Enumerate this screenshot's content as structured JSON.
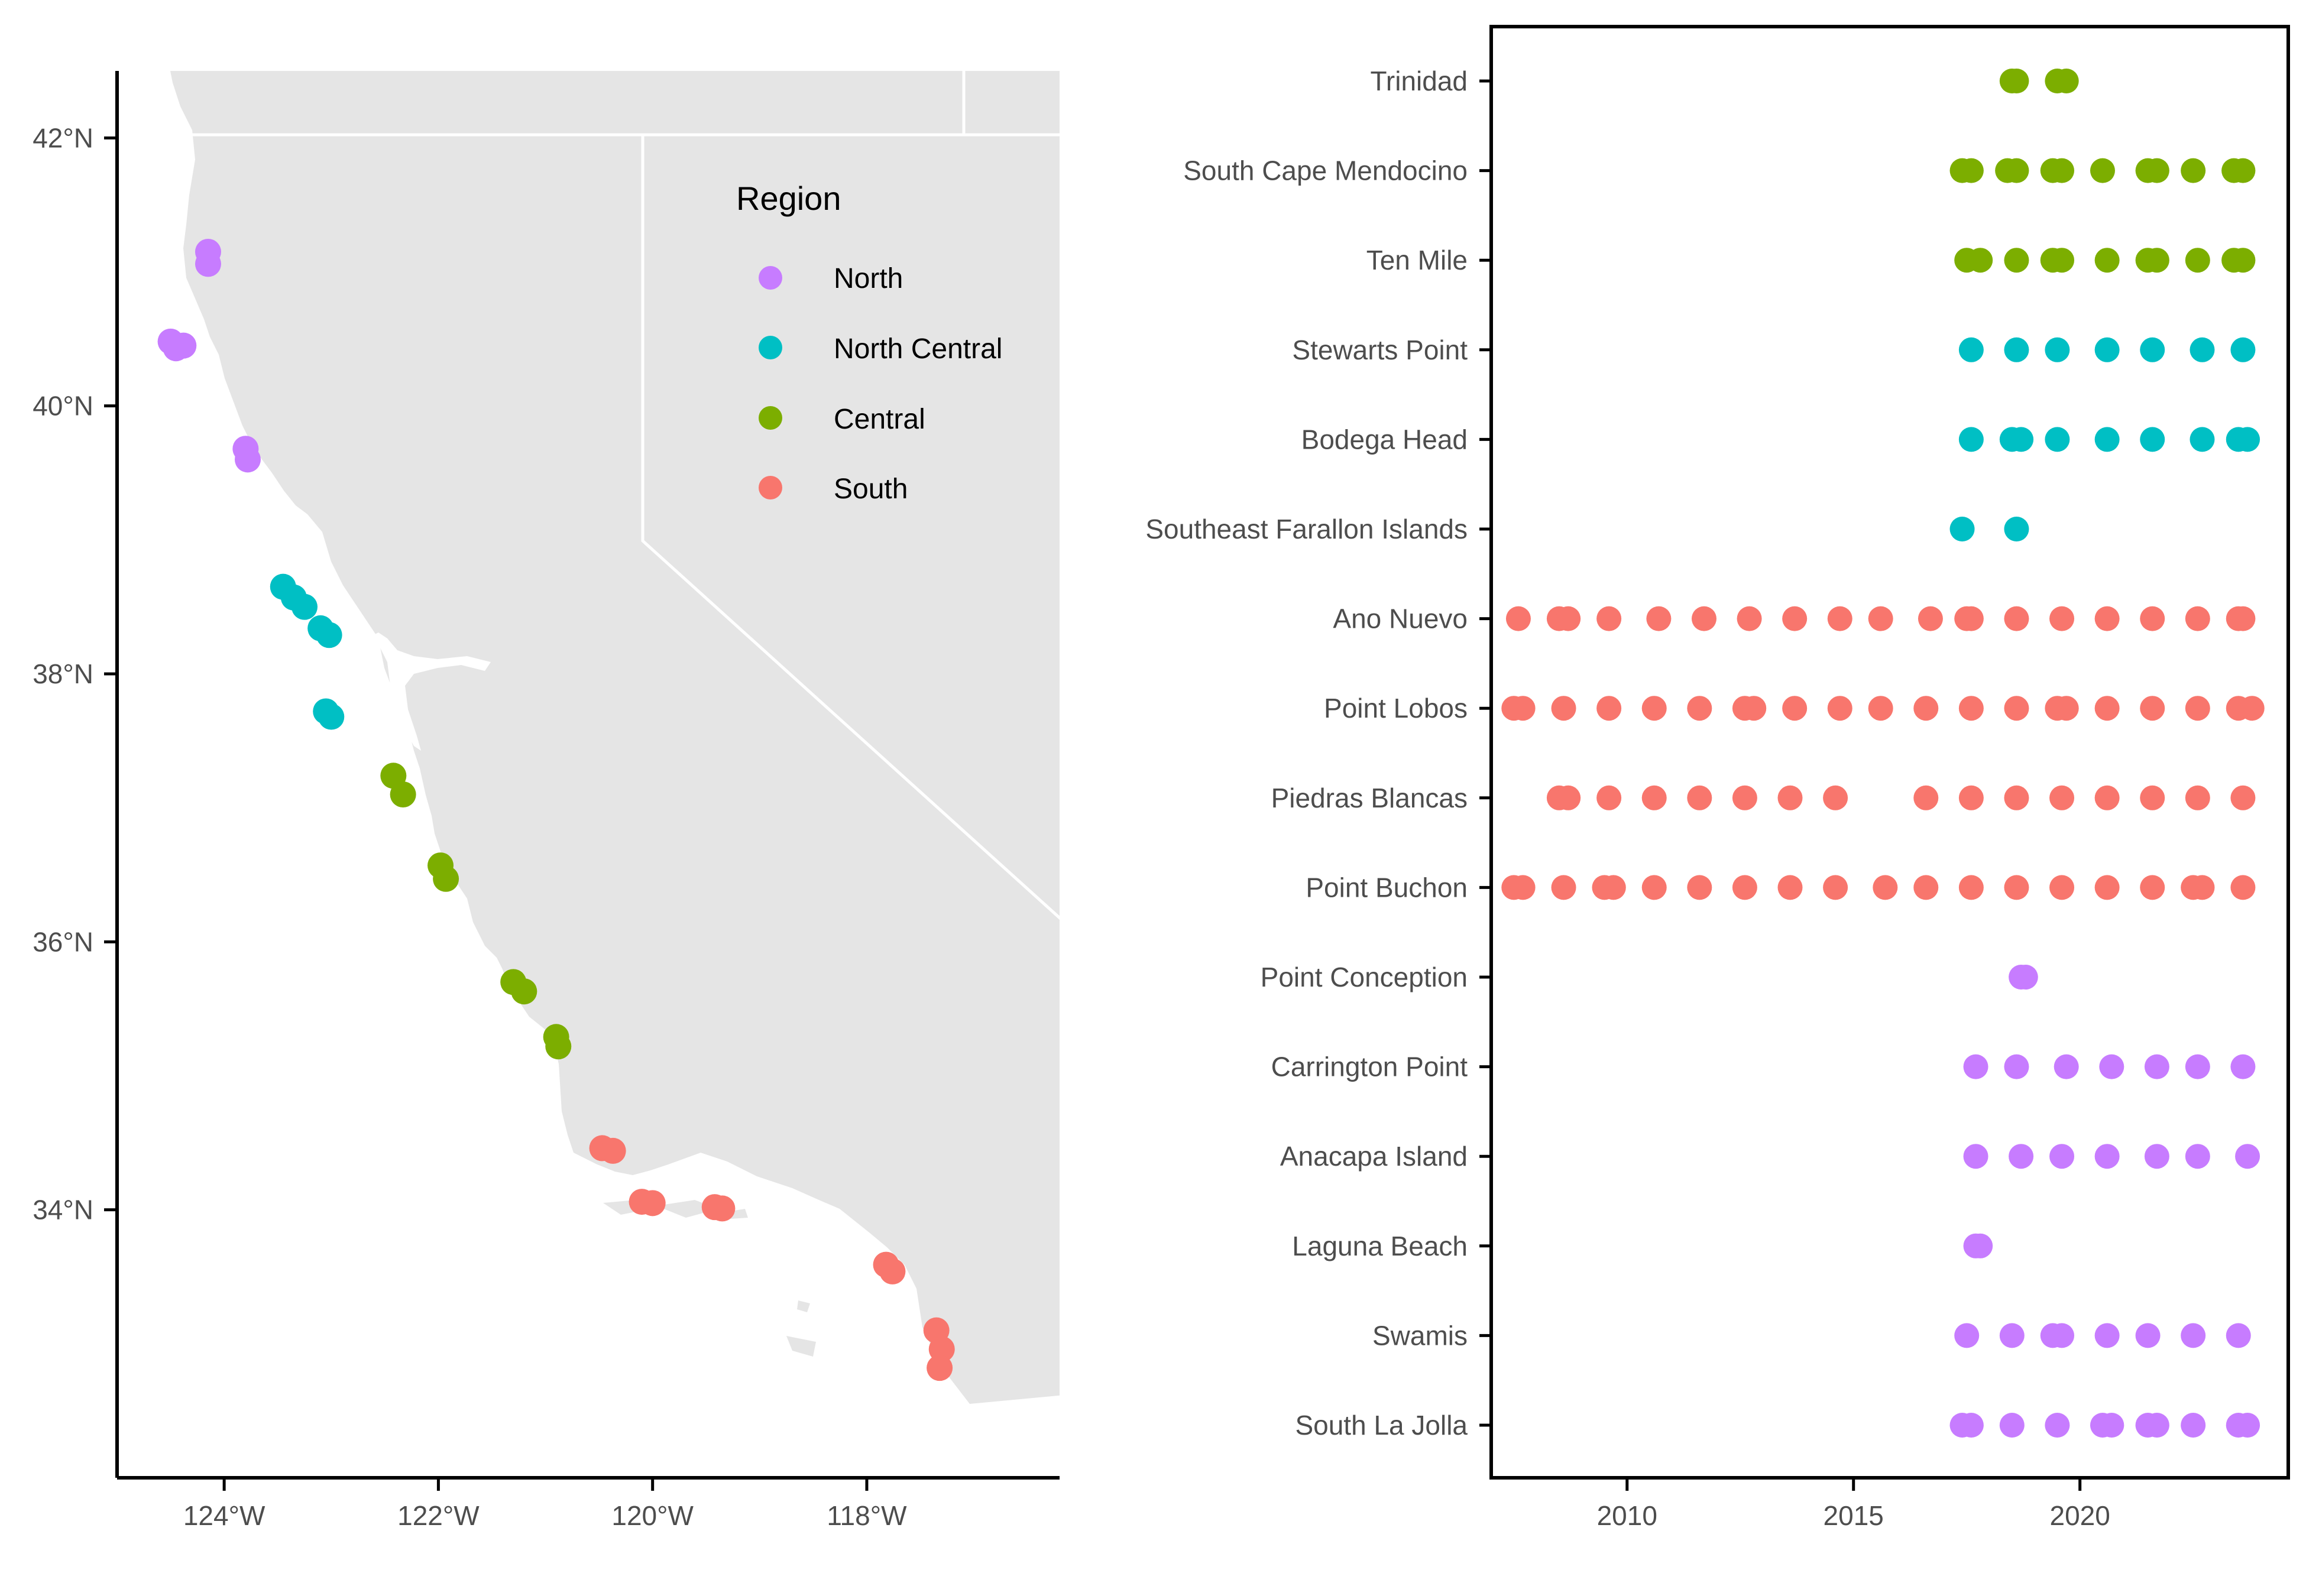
{
  "colors": {
    "North": "#c77cff",
    "North Central": "#00bfc4",
    "Central": "#7cae00",
    "South": "#f8766d",
    "land": "#e5e5e5",
    "ocean": "#ffffff",
    "axis": "#000000"
  },
  "legend": {
    "title": "Region",
    "items": [
      "North",
      "North Central",
      "Central",
      "South"
    ]
  },
  "chart_data": [
    {
      "type": "scatter",
      "name": "site map",
      "xlim": [
        -125.0,
        -116.2
      ],
      "ylim": [
        32.0,
        42.5
      ],
      "x_ticks": [
        -124,
        -122,
        -120,
        -118
      ],
      "x_tick_labels": [
        "124°W",
        "122°W",
        "120°W",
        "118°W"
      ],
      "y_ticks": [
        34,
        36,
        38,
        40,
        42
      ],
      "y_tick_labels": [
        "34°N",
        "36°N",
        "38°N",
        "40°N",
        "42°N"
      ],
      "grid": false,
      "legend_position": "top-right",
      "points": [
        {
          "lon": -124.15,
          "lat": 41.15,
          "region": "North"
        },
        {
          "lon": -124.15,
          "lat": 41.06,
          "region": "North"
        },
        {
          "lon": -124.5,
          "lat": 40.48,
          "region": "North"
        },
        {
          "lon": -124.38,
          "lat": 40.45,
          "region": "North"
        },
        {
          "lon": -124.45,
          "lat": 40.43,
          "region": "North"
        },
        {
          "lon": -123.8,
          "lat": 39.68,
          "region": "North"
        },
        {
          "lon": -123.78,
          "lat": 39.6,
          "region": "North"
        },
        {
          "lon": -123.45,
          "lat": 38.65,
          "region": "North Central"
        },
        {
          "lon": -123.35,
          "lat": 38.57,
          "region": "North Central"
        },
        {
          "lon": -123.25,
          "lat": 38.5,
          "region": "North Central"
        },
        {
          "lon": -123.1,
          "lat": 38.34,
          "region": "North Central"
        },
        {
          "lon": -123.02,
          "lat": 38.29,
          "region": "North Central"
        },
        {
          "lon": -123.05,
          "lat": 37.72,
          "region": "North Central"
        },
        {
          "lon": -123.0,
          "lat": 37.68,
          "region": "North Central"
        },
        {
          "lon": -122.42,
          "lat": 37.24,
          "region": "Central"
        },
        {
          "lon": -122.33,
          "lat": 37.1,
          "region": "Central"
        },
        {
          "lon": -121.98,
          "lat": 36.57,
          "region": "Central"
        },
        {
          "lon": -121.93,
          "lat": 36.47,
          "region": "Central"
        },
        {
          "lon": -121.3,
          "lat": 35.7,
          "region": "Central"
        },
        {
          "lon": -121.2,
          "lat": 35.63,
          "region": "Central"
        },
        {
          "lon": -120.9,
          "lat": 35.29,
          "region": "Central"
        },
        {
          "lon": -120.88,
          "lat": 35.22,
          "region": "Central"
        },
        {
          "lon": -120.47,
          "lat": 34.46,
          "region": "South"
        },
        {
          "lon": -120.37,
          "lat": 34.44,
          "region": "South"
        },
        {
          "lon": -120.1,
          "lat": 34.06,
          "region": "South"
        },
        {
          "lon": -120.0,
          "lat": 34.05,
          "region": "South"
        },
        {
          "lon": -119.42,
          "lat": 34.02,
          "region": "South"
        },
        {
          "lon": -119.35,
          "lat": 34.01,
          "region": "South"
        },
        {
          "lon": -117.82,
          "lat": 33.59,
          "region": "South"
        },
        {
          "lon": -117.76,
          "lat": 33.54,
          "region": "South"
        },
        {
          "lon": -117.35,
          "lat": 33.1,
          "region": "South"
        },
        {
          "lon": -117.3,
          "lat": 32.96,
          "region": "South"
        },
        {
          "lon": -117.32,
          "lat": 32.82,
          "region": "South"
        }
      ]
    },
    {
      "type": "scatter",
      "name": "sampling timeline",
      "xlim": [
        2007.0,
        2024.6
      ],
      "x_ticks": [
        2010,
        2015,
        2020
      ],
      "x_tick_labels": [
        "2010",
        "2015",
        "2020"
      ],
      "grid": false,
      "sites": [
        {
          "label": "Trinidad",
          "region": "Central",
          "years": [
            2018.5,
            2018.6,
            2019.5,
            2019.7
          ]
        },
        {
          "label": "South Cape Mendocino",
          "region": "Central",
          "years": [
            2017.4,
            2017.6,
            2018.4,
            2018.6,
            2019.4,
            2019.6,
            2020.5,
            2021.5,
            2021.7,
            2022.5,
            2023.4,
            2023.6
          ]
        },
        {
          "label": "Ten Mile",
          "region": "Central",
          "years": [
            2017.5,
            2017.8,
            2018.6,
            2019.4,
            2019.6,
            2020.6,
            2021.5,
            2021.7,
            2022.6,
            2023.4,
            2023.6
          ]
        },
        {
          "label": "Stewarts Point",
          "region": "North Central",
          "years": [
            2017.6,
            2018.6,
            2019.5,
            2020.6,
            2021.6,
            2022.7,
            2023.6
          ]
        },
        {
          "label": "Bodega Head",
          "region": "North Central",
          "years": [
            2017.6,
            2018.5,
            2018.7,
            2019.5,
            2020.6,
            2021.6,
            2022.7,
            2023.5,
            2023.7
          ]
        },
        {
          "label": "Southeast Farallon Islands",
          "region": "North Central",
          "years": [
            2017.4,
            2018.6
          ]
        },
        {
          "label": "Ano Nuevo",
          "region": "South",
          "years": [
            2007.6,
            2008.5,
            2008.7,
            2009.6,
            2010.7,
            2011.7,
            2012.7,
            2013.7,
            2014.7,
            2015.6,
            2016.7,
            2017.5,
            2017.6,
            2018.6,
            2019.6,
            2020.6,
            2021.6,
            2022.6,
            2023.5,
            2023.6
          ]
        },
        {
          "label": "Point Lobos",
          "region": "South",
          "years": [
            2007.5,
            2007.7,
            2008.6,
            2009.6,
            2010.6,
            2011.6,
            2012.6,
            2012.8,
            2013.7,
            2014.7,
            2015.6,
            2016.6,
            2017.6,
            2018.6,
            2019.5,
            2019.7,
            2020.6,
            2021.6,
            2022.6,
            2023.5,
            2023.8
          ]
        },
        {
          "label": "Piedras Blancas",
          "region": "South",
          "years": [
            2008.5,
            2008.7,
            2009.6,
            2010.6,
            2011.6,
            2012.6,
            2013.6,
            2014.6,
            2016.6,
            2017.6,
            2018.6,
            2019.6,
            2020.6,
            2021.6,
            2022.6,
            2023.6
          ]
        },
        {
          "label": "Point Buchon",
          "region": "South",
          "years": [
            2007.5,
            2007.7,
            2008.6,
            2009.5,
            2009.7,
            2010.6,
            2011.6,
            2012.6,
            2013.6,
            2014.6,
            2015.7,
            2016.6,
            2017.6,
            2018.6,
            2019.6,
            2020.6,
            2021.6,
            2022.5,
            2022.7,
            2023.6
          ]
        },
        {
          "label": "Point Conception",
          "region": "North",
          "years": [
            2018.7,
            2018.8
          ]
        },
        {
          "label": "Carrington Point",
          "region": "North",
          "years": [
            2017.7,
            2018.6,
            2019.7,
            2020.7,
            2021.7,
            2022.6,
            2023.6
          ]
        },
        {
          "label": "Anacapa Island",
          "region": "North",
          "years": [
            2017.7,
            2018.7,
            2019.6,
            2020.6,
            2021.7,
            2022.6,
            2023.7
          ]
        },
        {
          "label": "Laguna Beach",
          "region": "North",
          "years": [
            2017.7,
            2017.8
          ]
        },
        {
          "label": "Swamis",
          "region": "North",
          "years": [
            2017.5,
            2018.5,
            2019.4,
            2019.6,
            2020.6,
            2021.5,
            2022.5,
            2023.5
          ]
        },
        {
          "label": "South La Jolla",
          "region": "North",
          "years": [
            2017.4,
            2017.6,
            2018.5,
            2019.5,
            2020.5,
            2020.7,
            2021.5,
            2021.7,
            2022.5,
            2023.5,
            2023.7
          ]
        }
      ]
    }
  ]
}
